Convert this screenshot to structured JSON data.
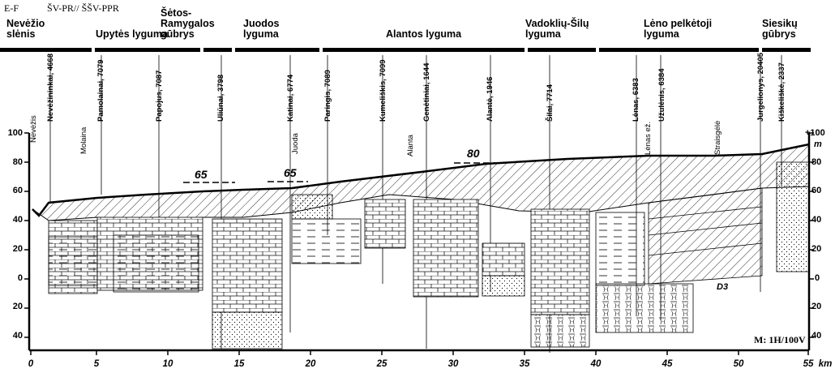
{
  "header": {
    "direction": "E-F",
    "zones": "ŠV-PR// ŠŠV-PPR"
  },
  "regions": [
    {
      "l1": "Nevėžio",
      "l2": "slėnis"
    },
    {
      "l1": "Upytės lyguma",
      "l2": ""
    },
    {
      "l1": "Šėtos-",
      "l2": "Ramygalos",
      "l3": "gūbrys"
    },
    {
      "l1": "Juodos",
      "l2": "lyguma"
    },
    {
      "l1": "Alantos lyguma",
      "l2": ""
    },
    {
      "l1": "Vadoklių-Šilų",
      "l2": "lyguma"
    },
    {
      "l1": "Lėno pelkėtoji",
      "l2": "lyguma"
    },
    {
      "l1": "Siesikų",
      "l2": "gūbrys"
    }
  ],
  "wells": [
    {
      "name": "Nevėžininkai,",
      "id": "4668"
    },
    {
      "name": "Pamolainai,",
      "id": "7079"
    },
    {
      "name": "Papojus, 7087",
      "id": ""
    },
    {
      "name": "Uliūnai, 3798",
      "id": ""
    },
    {
      "name": "Katinai, 6774",
      "id": ""
    },
    {
      "name": "Paringis, 7089",
      "id": ""
    },
    {
      "name": "Kumeliškis,",
      "id": "7099"
    },
    {
      "name": "Genėtiniai,",
      "id": "1644"
    },
    {
      "name": "Alantė, 1946",
      "id": ""
    },
    {
      "name": "Šilai, 7714",
      "id": ""
    },
    {
      "name": "Lėnas, 6383",
      "id": ""
    },
    {
      "name": "Užulėnis, 6384",
      "id": ""
    },
    {
      "name": "Jurgelionys,",
      "id": "20405"
    },
    {
      "name": "Kiškeliškė,",
      "id": "2337"
    }
  ],
  "streams": [
    "Nevėžis",
    "Molaina",
    "Juoda",
    "Alanta",
    "Lėnas ež.",
    "Straisgėlė"
  ],
  "axis": {
    "y_left": [
      "100",
      "80",
      "60",
      "40",
      "20",
      "0",
      "20",
      "40"
    ],
    "y_right": [
      "+100",
      "80",
      "60",
      "40",
      "20",
      "0",
      "20",
      "40"
    ],
    "y_unit": "m",
    "x": [
      "0",
      "5",
      "10",
      "15",
      "20",
      "25",
      "30",
      "35",
      "40",
      "45",
      "50",
      "55"
    ],
    "x_unit": "km"
  },
  "contours": [
    "65",
    "65",
    "80"
  ],
  "strata_labels": [
    "D3",
    "D3",
    "D3"
  ],
  "scale": "M: 1H/100V"
}
